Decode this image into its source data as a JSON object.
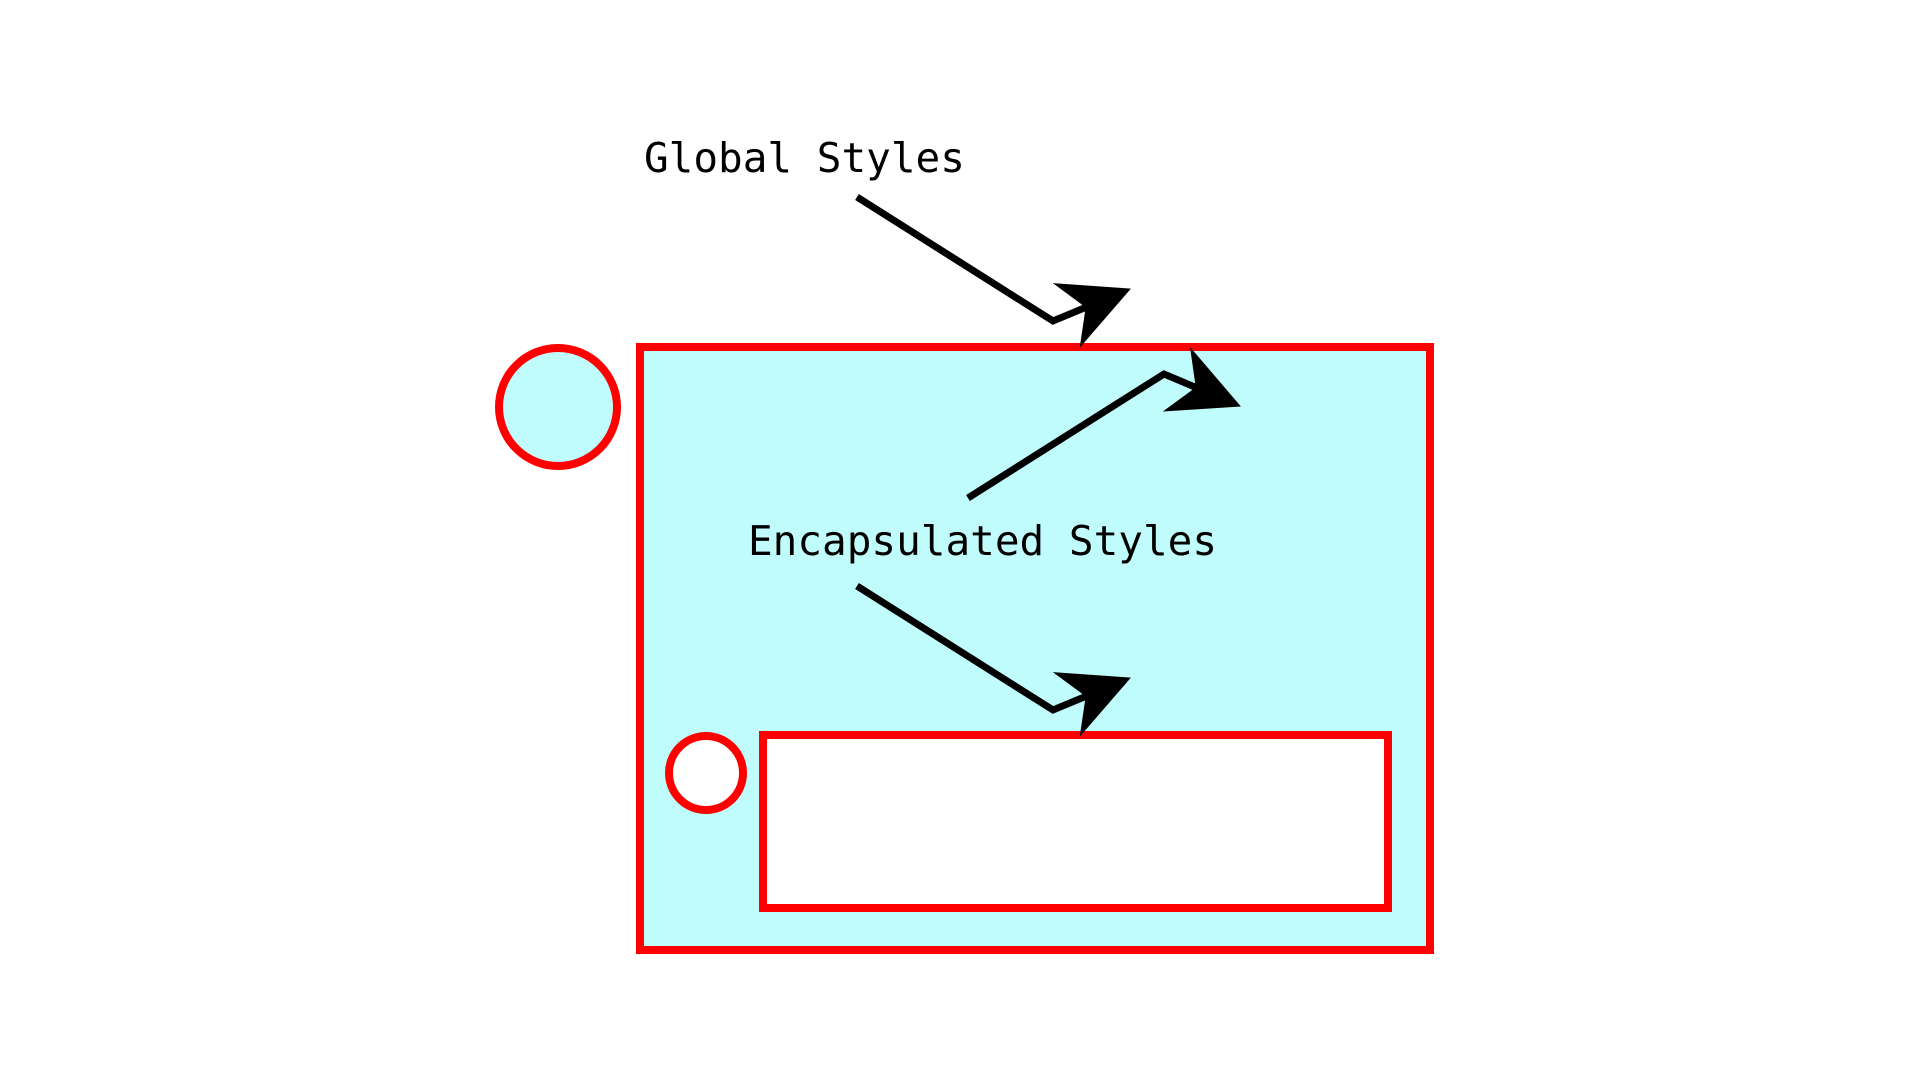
{
  "labels": {
    "global": "Global Styles",
    "encapsulated": "Encapsulated Styles"
  },
  "colors": {
    "background": "#ffffff",
    "outline": "#ff0000",
    "outer_fill": "#c0fcfc",
    "inner_fill": "#ffffff",
    "arrow": "#000000",
    "text": "#000000"
  }
}
